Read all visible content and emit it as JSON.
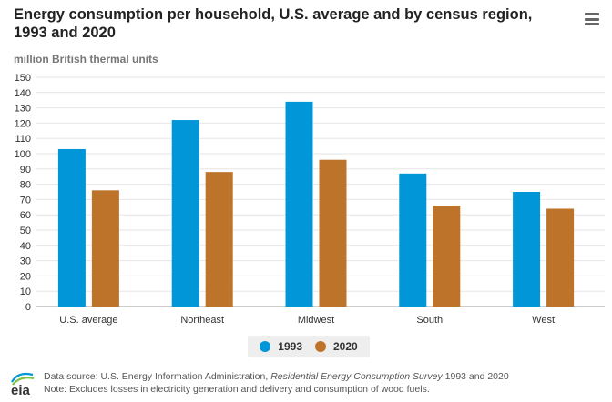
{
  "header": {
    "title": "Energy consumption per household, U.S. average and by census region, 1993 and 2020",
    "menu_icon": "hamburger-menu-icon"
  },
  "units_label": "million British thermal units",
  "footer": {
    "logo_text": "eia",
    "source_prefix": "Data source: U.S. Energy Information Administration, ",
    "source_title": "Residential Energy Consumption Survey",
    "source_suffix": " 1993 and 2020",
    "note": "Note: Excludes losses in electricity generation and delivery and consumption of wood fuels."
  },
  "colors": {
    "series_1993": "#0096d7",
    "series_2020": "#bd732a",
    "gridline": "#e6e6e6",
    "axis": "#999999"
  },
  "chart_data": {
    "type": "bar",
    "title": "Energy consumption per household, U.S. average and by census region, 1993 and 2020",
    "ylabel": "million British thermal units",
    "xlabel": "",
    "ylim": [
      0,
      150
    ],
    "ytick_step": 10,
    "grid": true,
    "legend_position": "bottom-center",
    "categories": [
      "U.S. average",
      "Northeast",
      "Midwest",
      "South",
      "West"
    ],
    "series": [
      {
        "name": "1993",
        "values": [
          103,
          122,
          134,
          87,
          75
        ]
      },
      {
        "name": "2020",
        "values": [
          76,
          88,
          96,
          66,
          64
        ]
      }
    ]
  }
}
